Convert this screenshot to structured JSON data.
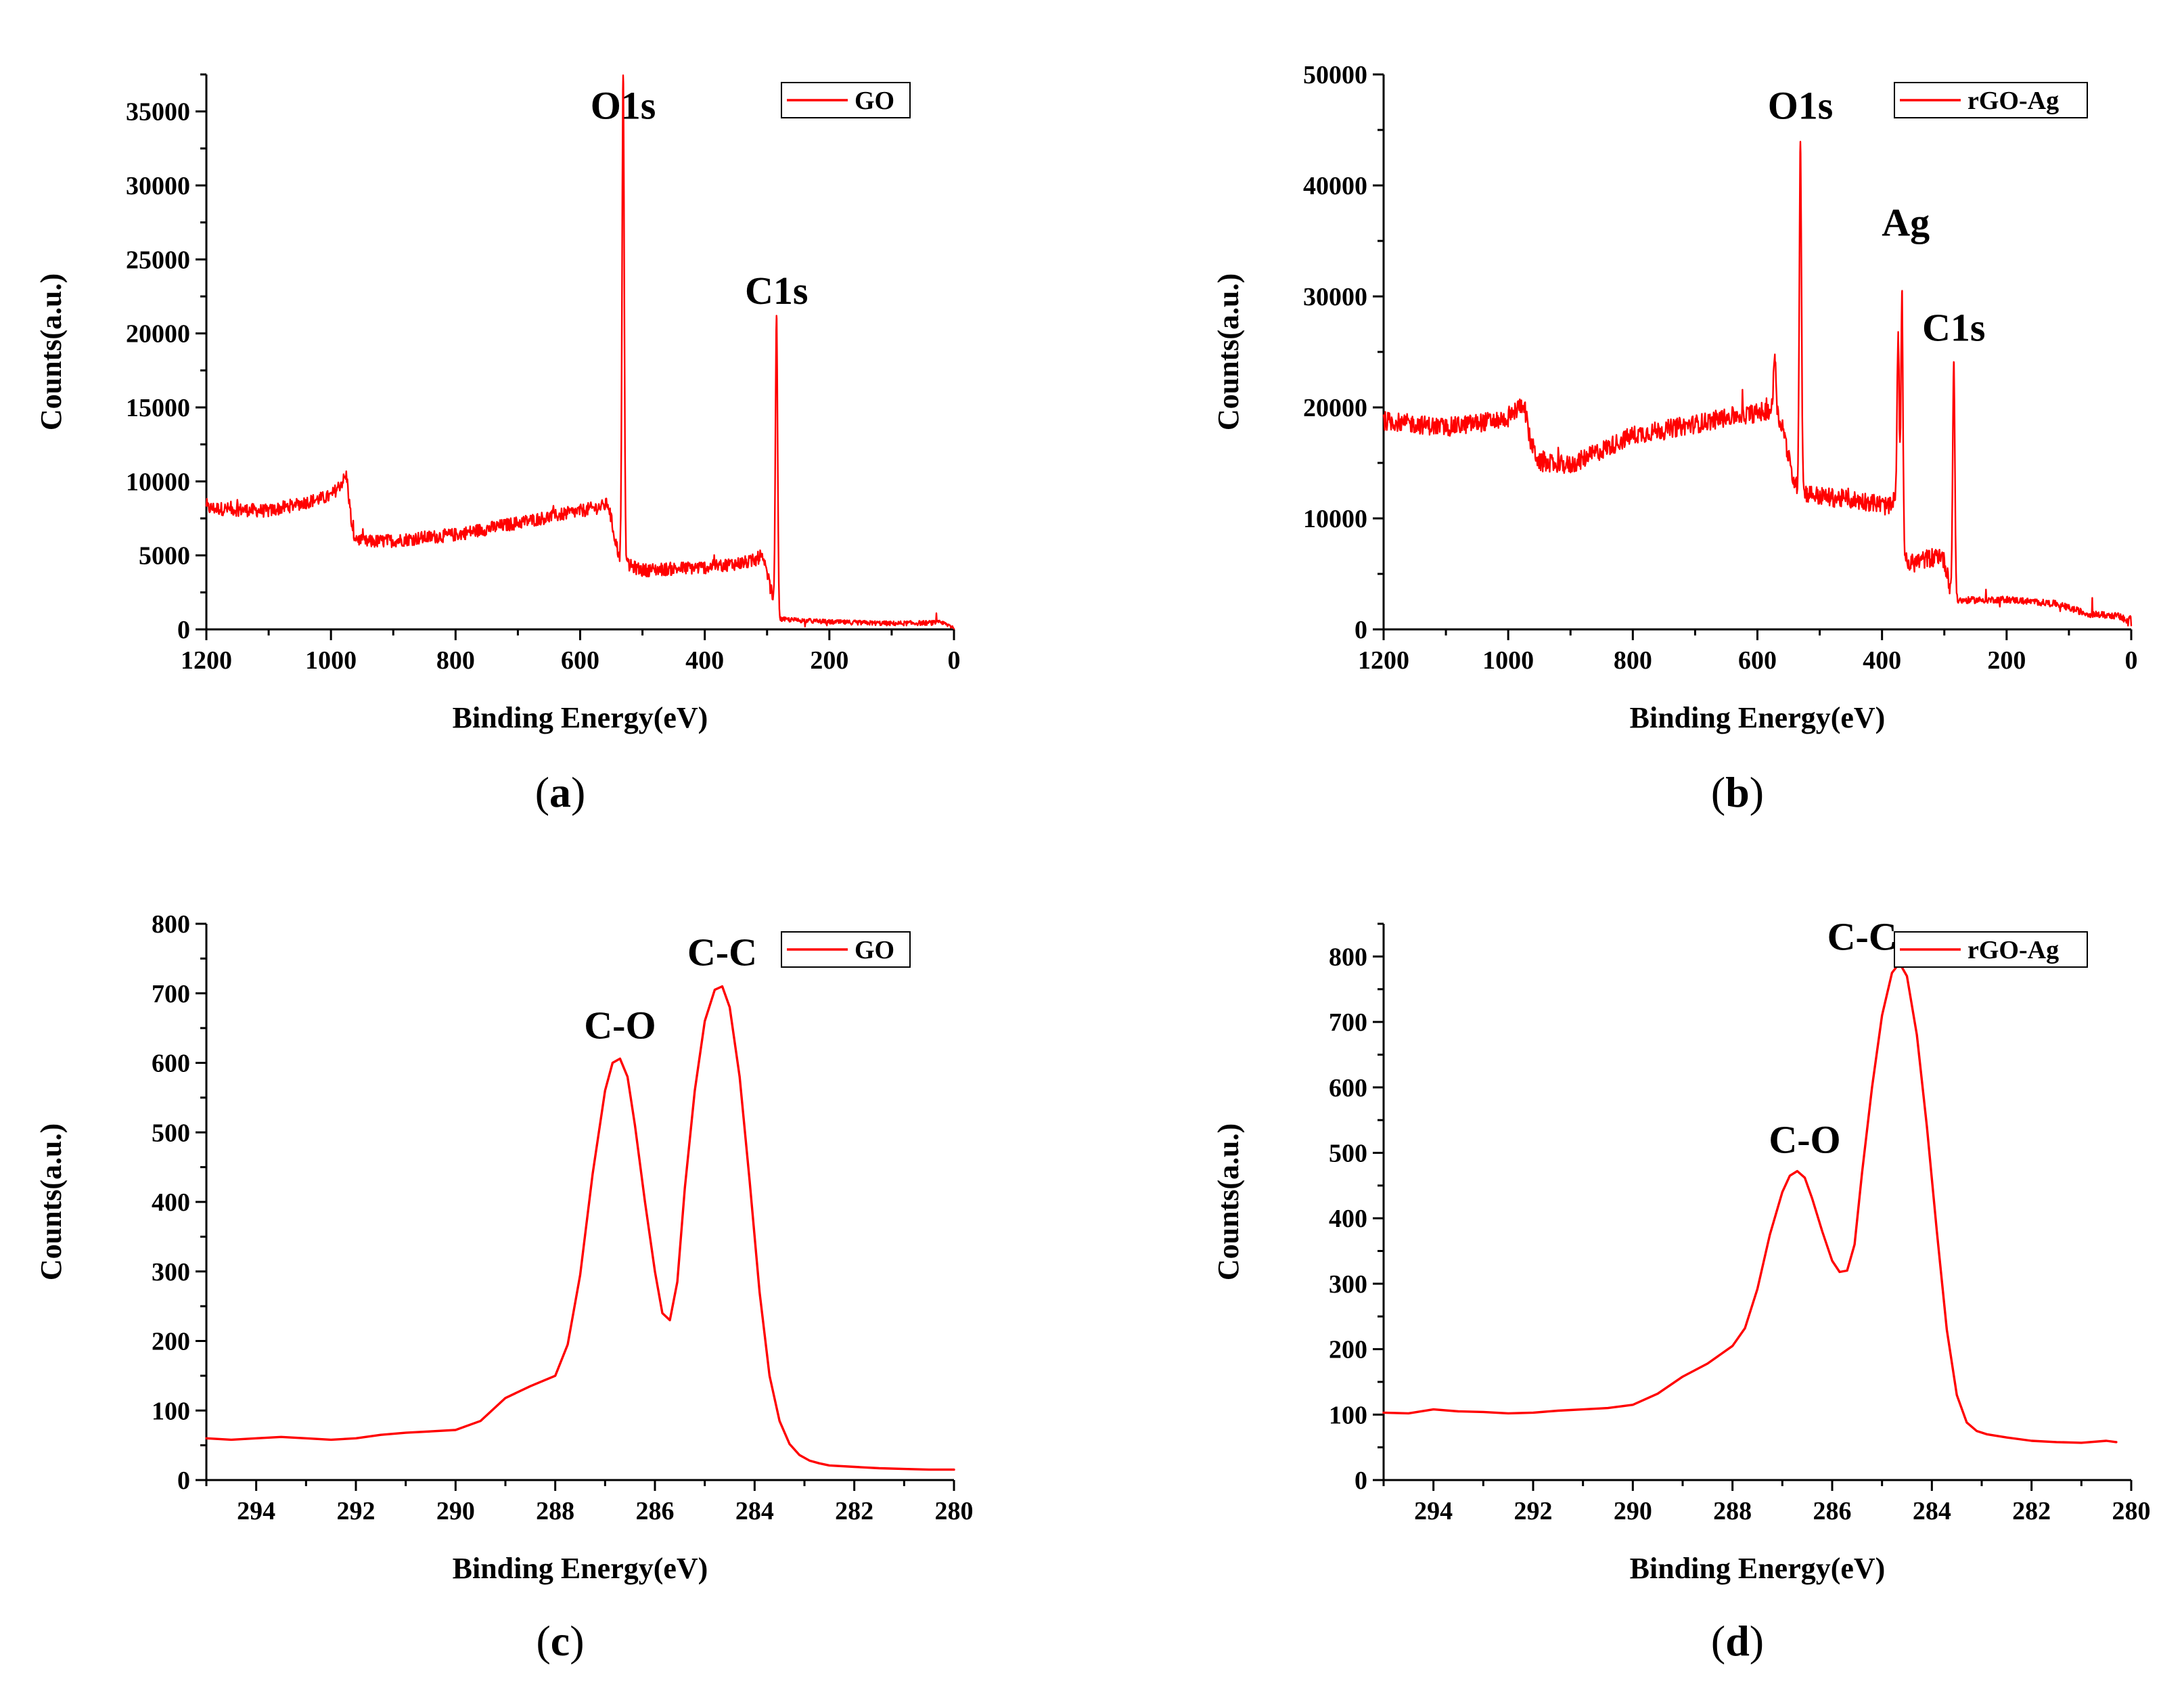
{
  "chart_data": [
    {
      "type": "line",
      "panel": "(a)",
      "caption_letter": "a",
      "xlabel": "Binding Energy(eV)",
      "ylabel": "Counts(a.u.)",
      "xlim": [
        1200,
        0
      ],
      "ylim": [
        0,
        37500
      ],
      "xticks": [
        1200,
        1000,
        800,
        600,
        400,
        200,
        0
      ],
      "yticks": [
        0,
        5000,
        10000,
        15000,
        20000,
        25000,
        30000,
        35000
      ],
      "legend": {
        "label": "GO",
        "position": "top-right"
      },
      "color": "#ff0000",
      "noise": 450,
      "baseline": [
        [
          1200,
          8200
        ],
        [
          1100,
          8000
        ],
        [
          1000,
          9000
        ],
        [
          985,
          9800
        ],
        [
          975,
          10400
        ],
        [
          965,
          6400
        ],
        [
          950,
          5900
        ],
        [
          900,
          6000
        ],
        [
          800,
          6400
        ],
        [
          700,
          7200
        ],
        [
          600,
          8000
        ],
        [
          565,
          8300
        ],
        [
          555,
          8500
        ],
        [
          545,
          6300
        ],
        [
          535,
          4500
        ],
        [
          500,
          4000
        ],
        [
          400,
          4200
        ],
        [
          320,
          4600
        ],
        [
          310,
          5000
        ],
        [
          300,
          3800
        ],
        [
          290,
          2000
        ],
        [
          285,
          700
        ],
        [
          200,
          500
        ],
        [
          100,
          400
        ],
        [
          20,
          450
        ],
        [
          10,
          300
        ],
        [
          0,
          150
        ]
      ],
      "peaks": [
        {
          "label": "O1s",
          "x": 531,
          "y": 33000,
          "width": 2.5
        },
        {
          "label": "C1s",
          "x": 284.8,
          "y": 20500,
          "width": 2.5
        }
      ],
      "annotations": [
        {
          "text": "O1s",
          "x": 531,
          "y": 34500
        },
        {
          "text": "C1s",
          "x": 284.8,
          "y": 22000
        }
      ]
    },
    {
      "type": "line",
      "panel": "(b)",
      "caption_letter": "b",
      "xlabel": "Binding Energy(eV)",
      "ylabel": "Counts(a.u.)",
      "xlim": [
        1200,
        0
      ],
      "ylim": [
        0,
        50000
      ],
      "xticks": [
        1200,
        1000,
        800,
        600,
        400,
        200,
        0
      ],
      "yticks": [
        0,
        10000,
        20000,
        30000,
        40000,
        50000
      ],
      "legend": {
        "label": "rGO-Ag",
        "position": "top-right"
      },
      "color": "#ff0000",
      "noise": 850,
      "baseline": [
        [
          1200,
          18800
        ],
        [
          1100,
          18200
        ],
        [
          1000,
          19000
        ],
        [
          975,
          20500
        ],
        [
          965,
          17000
        ],
        [
          950,
          15000
        ],
        [
          900,
          14800
        ],
        [
          800,
          17500
        ],
        [
          700,
          18500
        ],
        [
          640,
          19200
        ],
        [
          600,
          19500
        ],
        [
          580,
          19800
        ],
        [
          560,
          18500
        ],
        [
          545,
          14000
        ],
        [
          535,
          12500
        ],
        [
          500,
          12000
        ],
        [
          420,
          11500
        ],
        [
          385,
          11000
        ],
        [
          380,
          11800
        ],
        [
          375,
          12500
        ],
        [
          370,
          9000
        ],
        [
          360,
          5800
        ],
        [
          320,
          6500
        ],
        [
          305,
          6800
        ],
        [
          295,
          5200
        ],
        [
          290,
          3500
        ],
        [
          285,
          2600
        ],
        [
          200,
          2700
        ],
        [
          120,
          2300
        ],
        [
          70,
          1400
        ],
        [
          20,
          1200
        ],
        [
          5,
          600
        ],
        [
          2,
          1500
        ],
        [
          0,
          800
        ]
      ],
      "peaks": [
        {
          "label": "O1s",
          "x": 531,
          "y": 31500,
          "width": 2.5
        },
        {
          "label": "Ag",
          "x": 368,
          "y": 22000,
          "width": 2.2
        },
        {
          "label": "Ag",
          "x": 374,
          "y": 15000,
          "width": 2.2
        },
        {
          "label": "",
          "x": 572,
          "y": 5500,
          "width": 3
        },
        {
          "label": "C1s",
          "x": 284.8,
          "y": 21500,
          "width": 2.5
        }
      ],
      "annotations": [
        {
          "text": "O1s",
          "x": 531,
          "y": 46000
        },
        {
          "text": "Ag",
          "x": 362,
          "y": 35500
        },
        {
          "text": "C1s",
          "x": 284.8,
          "y": 26000
        }
      ]
    },
    {
      "type": "line",
      "panel": "(c)",
      "caption_letter": "c",
      "xlabel": "Binding Energy(eV)",
      "ylabel": "Counts(a.u.)",
      "xlim": [
        295,
        280
      ],
      "ylim": [
        0,
        800
      ],
      "xticks": [
        294,
        292,
        290,
        288,
        286,
        284,
        282,
        280
      ],
      "yticks": [
        0,
        100,
        200,
        300,
        400,
        500,
        600,
        700,
        800
      ],
      "legend": {
        "label": "GO",
        "position": "top-right"
      },
      "color": "#ff0000",
      "noise": 0,
      "x": [
        295,
        294.5,
        294,
        293.5,
        293,
        292.5,
        292,
        291.5,
        291,
        290.5,
        290,
        289.5,
        289,
        288.5,
        288,
        287.75,
        287.5,
        287.25,
        287,
        286.85,
        286.7,
        286.55,
        286.4,
        286.2,
        286,
        285.85,
        285.7,
        285.55,
        285.4,
        285.2,
        285,
        284.8,
        284.65,
        284.5,
        284.3,
        284.1,
        283.9,
        283.7,
        283.5,
        283.3,
        283.1,
        282.9,
        282.7,
        282.5,
        282,
        281.5,
        281,
        280.5,
        280
      ],
      "y": [
        60,
        58,
        60,
        62,
        60,
        58,
        60,
        65,
        68,
        70,
        72,
        85,
        118,
        135,
        150,
        195,
        295,
        440,
        560,
        600,
        606,
        580,
        510,
        400,
        300,
        240,
        230,
        285,
        420,
        560,
        660,
        705,
        710,
        680,
        580,
        430,
        270,
        150,
        85,
        52,
        36,
        28,
        24,
        21,
        19,
        17,
        16,
        15,
        15
      ],
      "annotations": [
        {
          "text": "C-O",
          "x": 286.7,
          "y": 635
        },
        {
          "text": "C-C",
          "x": 284.65,
          "y": 740
        }
      ]
    },
    {
      "type": "line",
      "panel": "(d)",
      "caption_letter": "d",
      "xlabel": "Binding Energy(eV)",
      "ylabel": "Counts(a.u.)",
      "xlim": [
        295,
        280
      ],
      "ylim": [
        0,
        850
      ],
      "xticks": [
        294,
        292,
        290,
        288,
        286,
        284,
        282,
        280
      ],
      "yticks": [
        0,
        100,
        200,
        300,
        400,
        500,
        600,
        700,
        800
      ],
      "legend": {
        "label": "rGO-Ag",
        "position": "top-right"
      },
      "color": "#ff0000",
      "noise": 0,
      "x": [
        295,
        294.5,
        294,
        293.5,
        293,
        292.5,
        292,
        291.5,
        291,
        290.5,
        290,
        289.5,
        289,
        288.5,
        288,
        287.75,
        287.5,
        287.25,
        287,
        286.85,
        286.7,
        286.55,
        286.4,
        286.2,
        286,
        285.85,
        285.7,
        285.55,
        285.4,
        285.2,
        285,
        284.8,
        284.65,
        284.5,
        284.3,
        284.1,
        283.9,
        283.7,
        283.5,
        283.3,
        283.1,
        282.9,
        282.5,
        282,
        281.5,
        281,
        280.5,
        280.3
      ],
      "y": [
        103,
        102,
        108,
        105,
        104,
        102,
        103,
        106,
        108,
        110,
        115,
        132,
        158,
        178,
        205,
        232,
        292,
        375,
        440,
        465,
        472,
        462,
        430,
        380,
        335,
        318,
        320,
        360,
        470,
        600,
        710,
        775,
        790,
        770,
        680,
        540,
        380,
        230,
        130,
        88,
        75,
        70,
        65,
        60,
        58,
        57,
        60,
        58
      ],
      "annotations": [
        {
          "text": "C-O",
          "x": 286.55,
          "y": 500
        },
        {
          "text": "C-C",
          "x": 285.4,
          "y": 810
        }
      ]
    }
  ]
}
